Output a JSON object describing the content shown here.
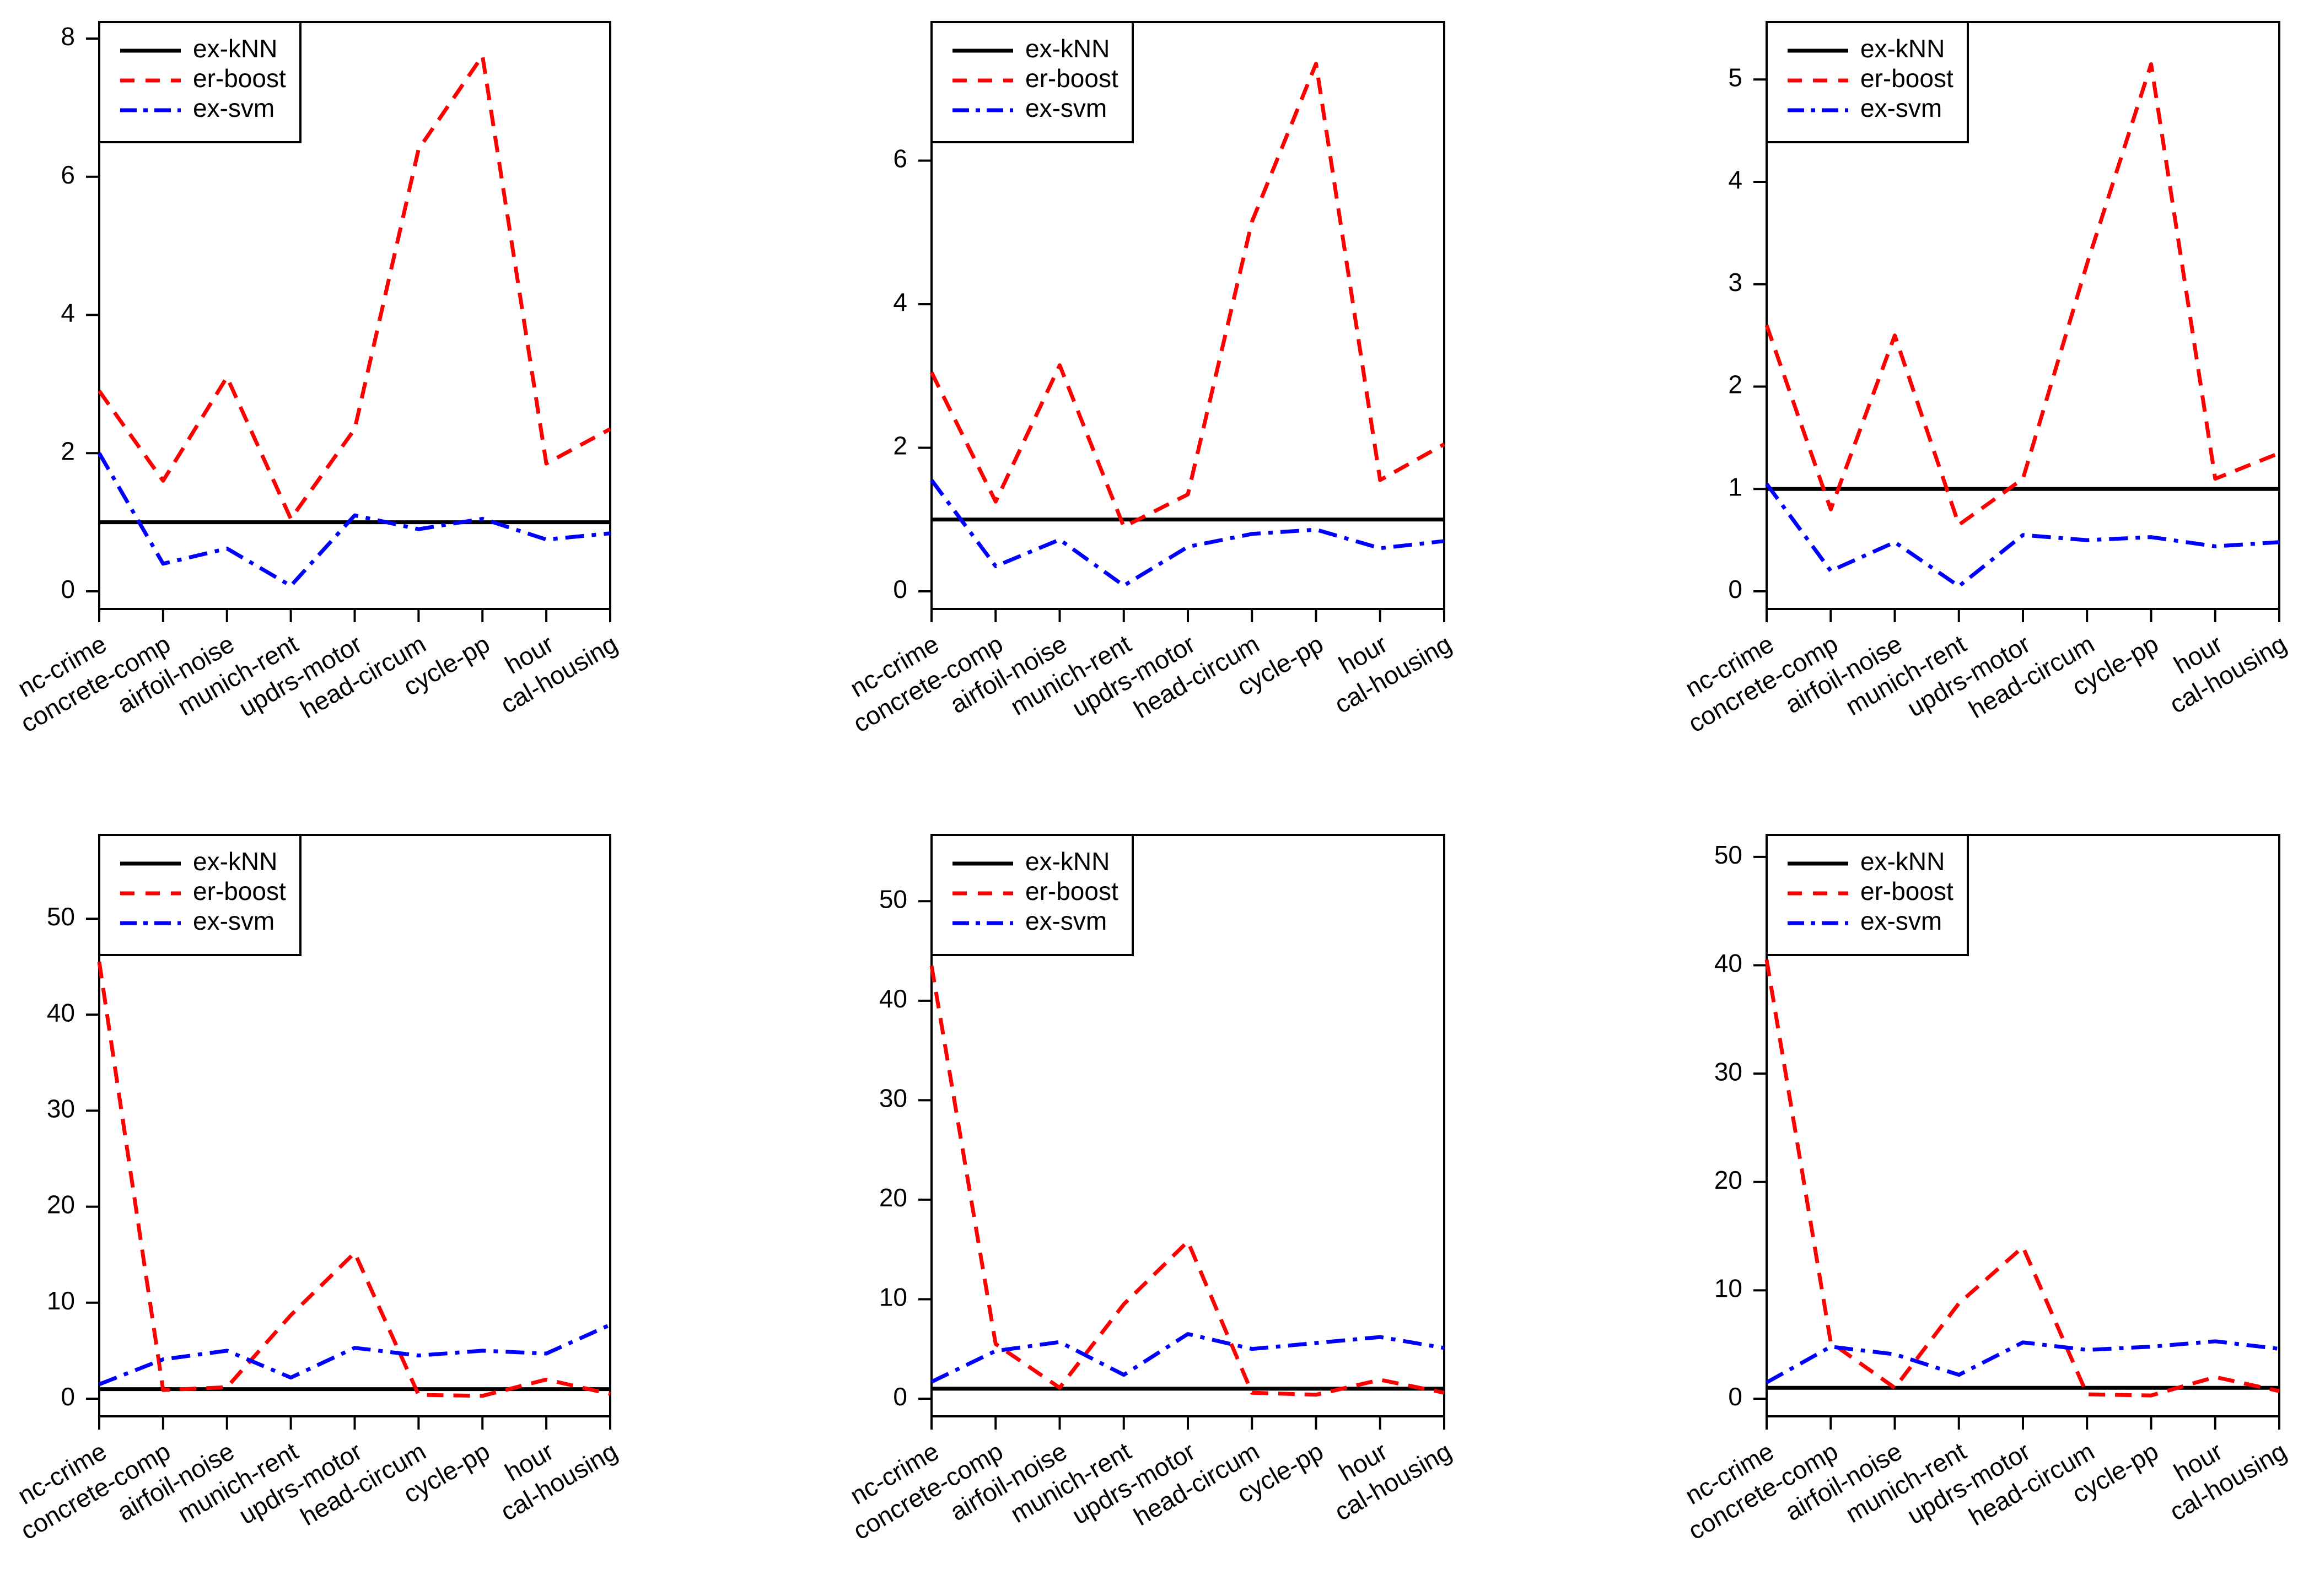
{
  "colors": {
    "ex-kNN": "#000000",
    "er-boost": "#ff0000",
    "ex-svm": "#0000ff",
    "axis": "#000000",
    "background": "#ffffff"
  },
  "chart_data": [
    {
      "type": "line",
      "legend_position": "top-left",
      "categories": [
        "nc-crime",
        "concrete-comp",
        "airfoil-noise",
        "munich-rent",
        "updrs-motor",
        "head-circum",
        "cycle-pp",
        "hour",
        "cal-housing"
      ],
      "ylim": [
        0,
        8
      ],
      "yticks": [
        0,
        2,
        4,
        6,
        8
      ],
      "series": [
        {
          "name": "ex-kNN",
          "style": "solid",
          "values": [
            1,
            1,
            1,
            1,
            1,
            1,
            1,
            1,
            1
          ]
        },
        {
          "name": "er-boost",
          "style": "dashed",
          "values": [
            2.9,
            1.6,
            3.1,
            1.05,
            2.35,
            6.4,
            7.75,
            1.85,
            2.35
          ]
        },
        {
          "name": "ex-svm",
          "style": "dashdot",
          "values": [
            2.0,
            0.4,
            0.62,
            0.08,
            1.1,
            0.9,
            1.05,
            0.75,
            0.84
          ]
        }
      ]
    },
    {
      "type": "line",
      "legend_position": "top-left",
      "categories": [
        "nc-crime",
        "concrete-comp",
        "airfoil-noise",
        "munich-rent",
        "updrs-motor",
        "head-circum",
        "cycle-pp",
        "hour",
        "cal-housing"
      ],
      "ylim": [
        0,
        7.7
      ],
      "yticks": [
        0,
        2,
        4,
        6
      ],
      "series": [
        {
          "name": "ex-kNN",
          "style": "solid",
          "values": [
            1,
            1,
            1,
            1,
            1,
            1,
            1,
            1,
            1
          ]
        },
        {
          "name": "er-boost",
          "style": "dashed",
          "values": [
            3.05,
            1.25,
            3.15,
            0.9,
            1.35,
            5.15,
            7.35,
            1.55,
            2.05
          ]
        },
        {
          "name": "ex-svm",
          "style": "dashdot",
          "values": [
            1.55,
            0.35,
            0.72,
            0.08,
            0.62,
            0.8,
            0.86,
            0.6,
            0.7
          ]
        }
      ]
    },
    {
      "type": "line",
      "legend_position": "top-left",
      "categories": [
        "nc-crime",
        "concrete-comp",
        "airfoil-noise",
        "munich-rent",
        "updrs-motor",
        "head-circum",
        "cycle-pp",
        "hour",
        "cal-housing"
      ],
      "ylim": [
        0,
        5.4
      ],
      "yticks": [
        0,
        1,
        2,
        3,
        4,
        5
      ],
      "series": [
        {
          "name": "ex-kNN",
          "style": "solid",
          "values": [
            1,
            1,
            1,
            1,
            1,
            1,
            1,
            1,
            1
          ]
        },
        {
          "name": "er-boost",
          "style": "dashed",
          "values": [
            2.6,
            0.8,
            2.5,
            0.65,
            1.1,
            3.2,
            5.15,
            1.1,
            1.35
          ]
        },
        {
          "name": "ex-svm",
          "style": "dashdot",
          "values": [
            1.05,
            0.2,
            0.48,
            0.05,
            0.55,
            0.5,
            0.53,
            0.44,
            0.48
          ]
        }
      ]
    },
    {
      "type": "line",
      "legend_position": "top-left",
      "categories": [
        "nc-crime",
        "concrete-comp",
        "airfoil-noise",
        "munich-rent",
        "updrs-motor",
        "head-circum",
        "cycle-pp",
        "hour",
        "cal-housing"
      ],
      "ylim": [
        0,
        57
      ],
      "yticks": [
        0,
        10,
        20,
        30,
        40,
        50
      ],
      "series": [
        {
          "name": "ex-kNN",
          "style": "solid",
          "values": [
            1,
            1,
            1,
            1,
            1,
            1,
            1,
            1,
            1
          ]
        },
        {
          "name": "er-boost",
          "style": "dashed",
          "values": [
            45.5,
            0.9,
            1.2,
            8.7,
            15.2,
            0.4,
            0.3,
            2.0,
            0.5
          ]
        },
        {
          "name": "ex-svm",
          "style": "dashdot",
          "values": [
            1.5,
            4.1,
            5.0,
            2.2,
            5.3,
            4.5,
            5.0,
            4.7,
            7.7
          ]
        }
      ]
    },
    {
      "type": "line",
      "legend_position": "top-left",
      "categories": [
        "nc-crime",
        "concrete-comp",
        "airfoil-noise",
        "munich-rent",
        "updrs-motor",
        "head-circum",
        "cycle-pp",
        "hour",
        "cal-housing"
      ],
      "ylim": [
        0,
        55
      ],
      "yticks": [
        0,
        10,
        20,
        30,
        40,
        50
      ],
      "series": [
        {
          "name": "ex-kNN",
          "style": "solid",
          "values": [
            1,
            1,
            1,
            1,
            1,
            1,
            1,
            1,
            1
          ]
        },
        {
          "name": "er-boost",
          "style": "dashed",
          "values": [
            43.5,
            5.5,
            1.1,
            9.5,
            15.8,
            0.6,
            0.4,
            1.9,
            0.6
          ]
        },
        {
          "name": "ex-svm",
          "style": "dashdot",
          "values": [
            1.7,
            4.8,
            5.7,
            2.4,
            6.5,
            5.0,
            5.6,
            6.2,
            5.1
          ]
        }
      ]
    },
    {
      "type": "line",
      "legend_position": "top-left",
      "categories": [
        "nc-crime",
        "concrete-comp",
        "airfoil-noise",
        "munich-rent",
        "updrs-motor",
        "head-circum",
        "cycle-pp",
        "hour",
        "cal-housing"
      ],
      "ylim": [
        0,
        50.5
      ],
      "yticks": [
        0,
        10,
        20,
        30,
        40,
        50
      ],
      "series": [
        {
          "name": "ex-kNN",
          "style": "solid",
          "values": [
            1,
            1,
            1,
            1,
            1,
            1,
            1,
            1,
            1
          ]
        },
        {
          "name": "er-boost",
          "style": "dashed",
          "values": [
            40.5,
            5.2,
            1.0,
            8.8,
            14.0,
            0.4,
            0.3,
            2.0,
            0.7
          ]
        },
        {
          "name": "ex-svm",
          "style": "dashdot",
          "values": [
            1.5,
            4.8,
            4.1,
            2.2,
            5.2,
            4.5,
            4.8,
            5.3,
            4.6
          ]
        }
      ]
    }
  ]
}
